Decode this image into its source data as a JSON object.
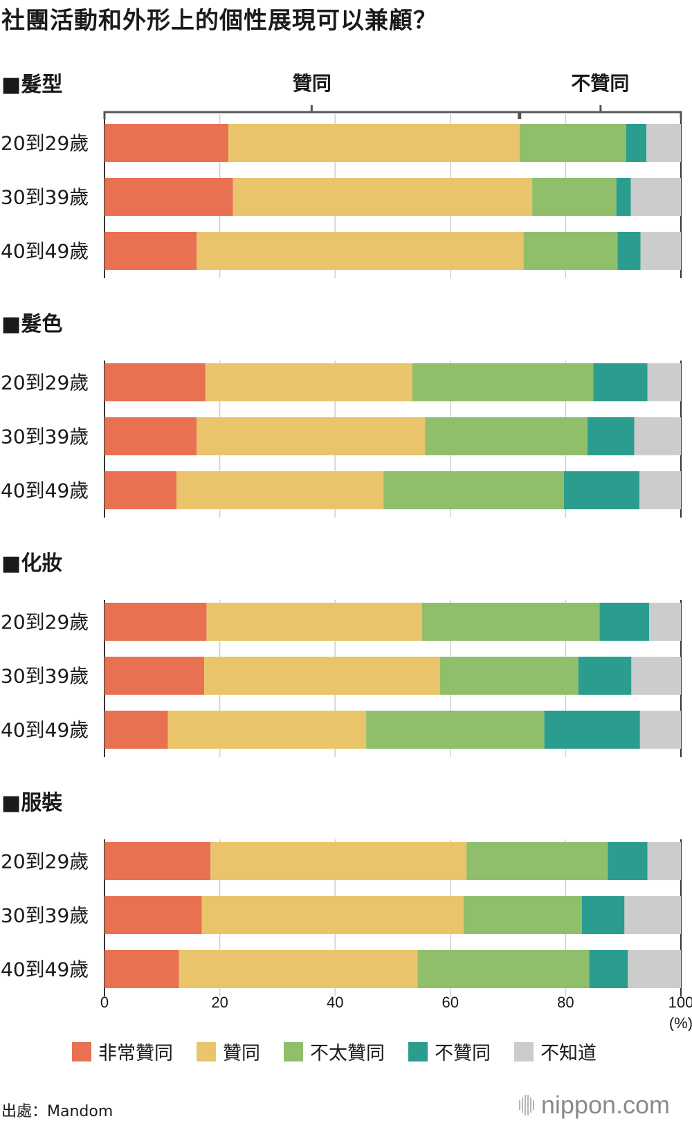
{
  "title": "社團活動和外形上的個性展現可以兼顧？",
  "source": "出處：Mandom",
  "brand": "nippon.com",
  "colors": {
    "very_agree": "#E87152",
    "agree": "#E9C46A",
    "not_really_agree": "#8FBF6B",
    "disagree": "#2A9D8F",
    "dont_know": "#CCCCCC"
  },
  "bracket": {
    "agree_label": "贊同",
    "disagree_label": "不贊同"
  },
  "chart_data": {
    "type": "bar",
    "orientation": "horizontal-stacked-100",
    "x_ticks": [
      "0",
      "20",
      "40",
      "60",
      "80",
      "100"
    ],
    "x_unit": "(%)",
    "xlim": [
      0,
      100
    ],
    "series": [
      {
        "key": "very_agree",
        "name": "非常贊同",
        "color": "#E87152"
      },
      {
        "key": "agree",
        "name": "贊同",
        "color": "#E9C46A"
      },
      {
        "key": "not_really_agree",
        "name": "不太贊同",
        "color": "#8FBF6B"
      },
      {
        "key": "disagree",
        "name": "不贊同",
        "color": "#2A9D8F"
      },
      {
        "key": "dont_know",
        "name": "不知道",
        "color": "#CCCCCC"
      }
    ],
    "groups": [
      {
        "title": "■髮型",
        "rows": [
          {
            "label": "20到29歲",
            "values": [
              21.5,
              50.5,
              18.5,
              3.5,
              6.0
            ]
          },
          {
            "label": "30到39歲",
            "values": [
              22.3,
              51.9,
              14.6,
              2.5,
              8.7
            ]
          },
          {
            "label": "40到49歲",
            "values": [
              16.0,
              56.7,
              16.3,
              4.0,
              7.0
            ]
          }
        ]
      },
      {
        "title": "■髮色",
        "rows": [
          {
            "label": "20到29歲",
            "values": [
              17.5,
              35.9,
              31.4,
              9.4,
              5.8
            ]
          },
          {
            "label": "30到39歲",
            "values": [
              16.0,
              39.6,
              28.2,
              8.1,
              8.1
            ]
          },
          {
            "label": "40到49歲",
            "values": [
              12.5,
              35.9,
              31.3,
              13.1,
              7.2
            ]
          }
        ]
      },
      {
        "title": "■化妝",
        "rows": [
          {
            "label": "20到29歲",
            "values": [
              17.7,
              37.4,
              30.8,
              8.6,
              5.5
            ]
          },
          {
            "label": "30到39歲",
            "values": [
              17.3,
              40.9,
              24.0,
              9.2,
              8.6
            ]
          },
          {
            "label": "40到49歲",
            "values": [
              11.0,
              34.4,
              30.9,
              16.6,
              7.1
            ]
          }
        ]
      },
      {
        "title": "■服裝",
        "rows": [
          {
            "label": "20到29歲",
            "values": [
              18.4,
              44.4,
              24.5,
              6.9,
              5.8
            ]
          },
          {
            "label": "30到39歲",
            "values": [
              16.9,
              45.4,
              20.5,
              7.4,
              9.8
            ]
          },
          {
            "label": "40到49歲",
            "values": [
              12.9,
              41.4,
              29.8,
              6.7,
              9.2
            ]
          }
        ]
      }
    ]
  }
}
